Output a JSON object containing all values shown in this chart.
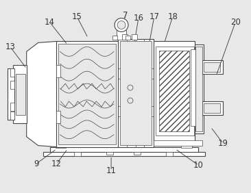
{
  "bg": "#e8e8e8",
  "lc": "#444444",
  "ac": "#333333",
  "fig_width": 3.66,
  "fig_height": 2.82,
  "dpi": 100,
  "annotations": [
    [
      "7",
      183,
      22,
      175,
      50
    ],
    [
      "13",
      14,
      68,
      38,
      100
    ],
    [
      "14",
      72,
      32,
      98,
      65
    ],
    [
      "15",
      112,
      24,
      128,
      55
    ],
    [
      "16",
      202,
      26,
      196,
      62
    ],
    [
      "17",
      225,
      24,
      218,
      62
    ],
    [
      "18",
      252,
      24,
      240,
      62
    ],
    [
      "20",
      344,
      32,
      316,
      110
    ],
    [
      "9",
      52,
      240,
      82,
      218
    ],
    [
      "12",
      82,
      240,
      98,
      218
    ],
    [
      "11",
      162,
      250,
      162,
      228
    ],
    [
      "10",
      290,
      242,
      256,
      218
    ],
    [
      "19",
      326,
      210,
      308,
      186
    ]
  ]
}
